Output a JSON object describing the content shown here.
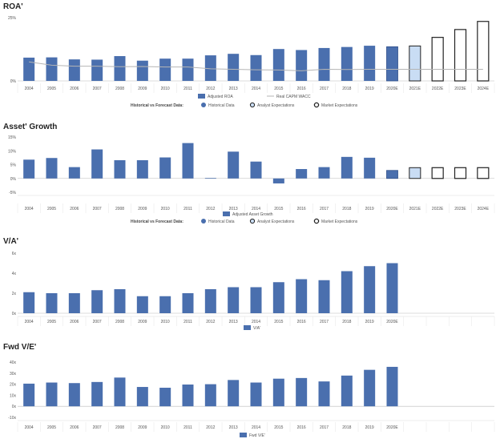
{
  "chart_data": [
    {
      "id": "roa",
      "type": "bar",
      "title": "ROA'",
      "categories": [
        "2004",
        "2005",
        "2006",
        "2007",
        "2008",
        "2009",
        "2010",
        "2011",
        "2012",
        "2013",
        "2014",
        "2015",
        "2016",
        "2017",
        "2018",
        "2019",
        "2020E",
        "2021E",
        "2022E",
        "2023E",
        "2024E"
      ],
      "yticks": [
        "0%",
        "25%"
      ],
      "ylim": [
        0,
        25
      ],
      "series": [
        {
          "name": "Adjusted ROA",
          "values": [
            9.2,
            9.3,
            8.5,
            8.4,
            9.8,
            8.0,
            8.8,
            8.8,
            10.1,
            10.7,
            10.2,
            12.6,
            12.2,
            13.0,
            13.4,
            13.9,
            null,
            null,
            null,
            null,
            null
          ]
        },
        {
          "name": "Historical Data",
          "values": [
            null,
            null,
            null,
            null,
            null,
            null,
            null,
            null,
            null,
            null,
            null,
            null,
            null,
            null,
            null,
            null,
            13.5,
            null,
            null,
            null,
            null
          ]
        },
        {
          "name": "Analyst Expectations",
          "values": [
            null,
            null,
            null,
            null,
            null,
            null,
            null,
            null,
            null,
            null,
            null,
            null,
            null,
            null,
            null,
            null,
            null,
            13.8,
            null,
            null,
            null
          ]
        },
        {
          "name": "Market Expectations",
          "values": [
            null,
            null,
            null,
            null,
            null,
            null,
            null,
            null,
            null,
            null,
            null,
            null,
            null,
            null,
            null,
            null,
            null,
            null,
            17.2,
            20.3,
            23.5
          ]
        },
        {
          "name": "Real CAPM WACC",
          "values": [
            7.5,
            6.2,
            5.8,
            5.8,
            5.6,
            5.7,
            5.5,
            5.5,
            4.8,
            4.6,
            4.4,
            4.3,
            4.0,
            4.6,
            4.5,
            4.6,
            4.6,
            4.6,
            4.6,
            4.6,
            4.6
          ]
        }
      ],
      "legend1": [
        "Adjusted ROA",
        "Real CAPM WACC"
      ],
      "legend2_label": "Historical vs Forecast Data:",
      "legend2": [
        "Historical Data",
        "Analyst Expectations",
        "Market Expectations"
      ]
    },
    {
      "id": "asset_growth",
      "type": "bar",
      "title": "Asset' Growth",
      "categories": [
        "2004",
        "2005",
        "2006",
        "2007",
        "2008",
        "2009",
        "2010",
        "2011",
        "2012",
        "2013",
        "2014",
        "2015",
        "2016",
        "2017",
        "2018",
        "2019",
        "2020E",
        "2021E",
        "2022E",
        "2023E",
        "2024E"
      ],
      "yticks": [
        "-5%",
        "0%",
        "5%",
        "10%",
        "15%"
      ],
      "ylim": [
        -5,
        15
      ],
      "series": [
        {
          "name": "Adjusted Asset Growth",
          "values": [
            6.8,
            7.4,
            4.1,
            10.5,
            6.6,
            6.6,
            7.6,
            12.8,
            0.2,
            9.7,
            6.1,
            -1.8,
            3.4,
            4.1,
            7.8,
            7.5,
            null,
            null,
            null,
            null,
            null
          ]
        },
        {
          "name": "Historical Data",
          "values": [
            null,
            null,
            null,
            null,
            null,
            null,
            null,
            null,
            null,
            null,
            null,
            null,
            null,
            null,
            null,
            null,
            2.9,
            null,
            null,
            null,
            null
          ]
        },
        {
          "name": "Analyst Expectations",
          "values": [
            null,
            null,
            null,
            null,
            null,
            null,
            null,
            null,
            null,
            null,
            null,
            null,
            null,
            null,
            null,
            null,
            null,
            3.9,
            null,
            null,
            null
          ]
        },
        {
          "name": "Market Expectations",
          "values": [
            null,
            null,
            null,
            null,
            null,
            null,
            null,
            null,
            null,
            null,
            null,
            null,
            null,
            null,
            null,
            null,
            null,
            null,
            3.9,
            3.9,
            3.9
          ]
        }
      ],
      "legend1": [
        "Adjusted Asset Growth"
      ],
      "legend2_label": "Historical vs Forecast Data:",
      "legend2": [
        "Historical Data",
        "Analyst Expectations",
        "Market Expectations"
      ]
    },
    {
      "id": "va",
      "type": "bar",
      "title": "V/A'",
      "categories": [
        "2004",
        "2005",
        "2006",
        "2007",
        "2008",
        "2009",
        "2010",
        "2011",
        "2012",
        "2013",
        "2014",
        "2015",
        "2016",
        "2017",
        "2018",
        "2019",
        "2020E",
        "",
        "",
        "",
        ""
      ],
      "yticks": [
        "0x",
        "2x",
        "4x",
        "6x"
      ],
      "ylim": [
        0,
        6
      ],
      "series": [
        {
          "name": "V/A'",
          "values": [
            2.1,
            2.0,
            2.0,
            2.3,
            2.4,
            1.7,
            1.7,
            2.0,
            2.4,
            2.6,
            2.6,
            3.1,
            3.4,
            3.3,
            4.2,
            4.7,
            5.0,
            null,
            null,
            null,
            null
          ]
        }
      ],
      "legend1": [
        "V/A'"
      ]
    },
    {
      "id": "fwd_ve",
      "type": "bar",
      "title": "Fwd V/E'",
      "categories": [
        "2004",
        "2005",
        "2006",
        "2007",
        "2008",
        "2009",
        "2010",
        "2011",
        "2012",
        "2013",
        "2014",
        "2015",
        "2016",
        "2017",
        "2018",
        "2019",
        "2020E",
        "",
        "",
        "",
        ""
      ],
      "yticks": [
        "-10x",
        "0x",
        "10x",
        "20x",
        "30x",
        "40x"
      ],
      "ylim": [
        -10,
        40
      ],
      "series": [
        {
          "name": "Fwd V/E'",
          "values": [
            20.5,
            21.5,
            21.0,
            22.0,
            26.0,
            17.5,
            16.8,
            19.7,
            20.0,
            23.8,
            21.5,
            25.0,
            25.6,
            22.5,
            27.8,
            33.0,
            35.7,
            null,
            null,
            null,
            null
          ]
        }
      ],
      "legend1": [
        "Fwd V/E'"
      ]
    }
  ],
  "colors": {
    "historical": "#4a6fae",
    "analyst": "#c9ddf4",
    "market": "#ffffff",
    "wacc": "#b5b5b5",
    "axis": "#bbbbbb",
    "text": "#555555",
    "title": "#222222"
  }
}
